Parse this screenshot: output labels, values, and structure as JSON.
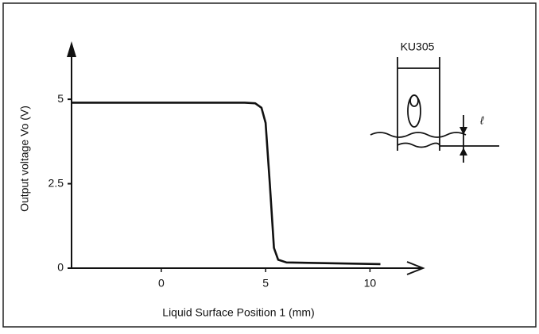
{
  "chart_data": {
    "type": "line",
    "xlabel": "Liquid Surface Position 1 (mm)",
    "ylabel": "Output voltage Vo (V)",
    "x": [
      -4.3,
      0,
      4.0,
      4.5,
      4.8,
      5.0,
      5.2,
      5.4,
      5.6,
      6.0,
      10.5
    ],
    "values": [
      4.9,
      4.9,
      4.9,
      4.88,
      4.75,
      4.3,
      2.5,
      0.6,
      0.25,
      0.17,
      0.12
    ],
    "color": "#111111",
    "xlim": [
      -4.3,
      12.5
    ],
    "ylim": [
      0,
      6.6
    ],
    "xticks": [
      0,
      5,
      10
    ],
    "yticks": [
      0,
      2.5,
      5
    ],
    "annotations": [
      "KU305",
      "ℓ"
    ]
  }
}
